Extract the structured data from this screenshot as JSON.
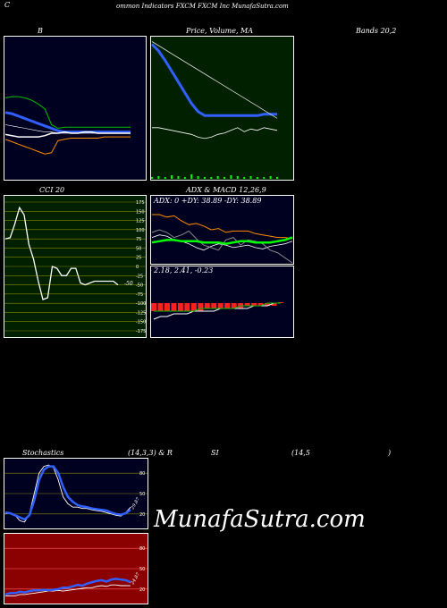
{
  "header": {
    "left": "C",
    "center": "ommon Indicators FXCM FXCM Inc MunafaSutra.com"
  },
  "labels": {
    "bollinger": "B",
    "price": "Price, Volume, MA",
    "bands": "Bands 20,2",
    "cci": "CCI 20",
    "adx": "ADX  & MACD 12,26,9",
    "adx_values": "ADX: 0  +DY: 38.89 -DY: 38.89",
    "macd_values": "2.18,  2.41,  -0.23",
    "stoch_a": "Stochastics",
    "stoch_b": "(14,3,3) & R",
    "stoch_c": "SI",
    "stoch_d": "(14,5",
    "stoch_e": ")",
    "cci_last": "-50",
    "stoch_last": "29.87",
    "rsi_last": "24.87"
  },
  "watermark": "MunafaSutra.com",
  "colors": {
    "panel_bg": "#000020",
    "green_bg": "#002000",
    "rsi_bg": "#8b0000",
    "blue": "#3060ff",
    "orange": "#ff8c00"
  },
  "chart_data": [
    {
      "type": "line",
      "name": "bollinger",
      "x": [
        1,
        2,
        3,
        4,
        5,
        6,
        7,
        8,
        9,
        10,
        11,
        12,
        13,
        14,
        15,
        16,
        17,
        18,
        19,
        20
      ],
      "series": [
        {
          "values": [
            62,
            63,
            63,
            62,
            60,
            57,
            53,
            40,
            37,
            38,
            38,
            38,
            38,
            38,
            38,
            38,
            38,
            38,
            38,
            38
          ]
        },
        {
          "values": [
            50,
            49,
            47,
            45,
            43,
            41,
            39,
            37,
            35,
            34,
            34,
            34,
            34,
            34,
            34,
            34,
            34,
            34,
            34,
            34
          ]
        },
        {
          "values": [
            40,
            39,
            38,
            37,
            36,
            35,
            34,
            34,
            33,
            33,
            33,
            33,
            33,
            33,
            33,
            33,
            33,
            33,
            33,
            33
          ]
        },
        {
          "values": [
            32,
            31,
            30,
            30,
            30,
            30,
            31,
            33,
            33,
            34,
            33,
            33,
            34,
            34,
            33,
            33,
            33,
            33,
            33,
            33
          ]
        },
        {
          "values": [
            28,
            26,
            24,
            22,
            20,
            18,
            16,
            17,
            27,
            28,
            29,
            29,
            29,
            29,
            29,
            30,
            30,
            30,
            30,
            30
          ]
        }
      ]
    },
    {
      "type": "line",
      "name": "price-ma",
      "x": [
        1,
        2,
        3,
        4,
        5,
        6,
        7,
        8,
        9,
        10,
        11,
        12,
        13,
        14,
        15,
        16,
        17,
        18,
        19,
        20
      ],
      "series": [
        {
          "values": [
            100,
            95,
            88,
            80,
            72,
            64,
            56,
            50,
            47,
            47,
            47,
            47,
            47,
            47,
            47,
            47,
            47,
            48,
            48,
            48
          ]
        },
        {
          "values": [
            102,
            99,
            96,
            93,
            90,
            87,
            84,
            81,
            78,
            75,
            72,
            69,
            66,
            63,
            60,
            57,
            54,
            51,
            48,
            45
          ]
        },
        {
          "values": [
            38,
            38,
            37,
            36,
            35,
            34,
            33,
            31,
            30,
            31,
            33,
            34,
            36,
            38,
            35,
            37,
            36,
            38,
            37,
            36
          ]
        }
      ],
      "volume": [
        2,
        3,
        2,
        4,
        3,
        2,
        5,
        3,
        2,
        2,
        3,
        2,
        4,
        3,
        2,
        3,
        2,
        2,
        3,
        2
      ]
    },
    {
      "type": "line",
      "name": "cci",
      "y_ticks": [
        "175",
        "150",
        "125",
        "100",
        "75",
        "50",
        "25",
        "0",
        "-25",
        "-50",
        "-75",
        "-100",
        "-125",
        "-150",
        "-175"
      ],
      "ylim": [
        -175,
        175
      ],
      "x": [
        1,
        2,
        3,
        4,
        5,
        6,
        7,
        8,
        9,
        10,
        11,
        12,
        13,
        14,
        15,
        16,
        17,
        18,
        19,
        20,
        21,
        22,
        23,
        24,
        25
      ],
      "series": [
        {
          "values": [
            75,
            78,
            115,
            160,
            140,
            60,
            20,
            -40,
            -90,
            -85,
            0,
            -5,
            -25,
            -25,
            -5,
            -5,
            -45,
            -50,
            -45,
            -40,
            -40,
            -40,
            -40,
            -40,
            -50
          ]
        }
      ]
    },
    {
      "type": "line",
      "name": "adx",
      "x": [
        1,
        2,
        3,
        4,
        5,
        6,
        7,
        8,
        9,
        10,
        11,
        12,
        13,
        14,
        15,
        16,
        17,
        18,
        19,
        20
      ],
      "series": [
        {
          "values": [
            38,
            38,
            36,
            37,
            33,
            30,
            31,
            29,
            26,
            27,
            24,
            25,
            25,
            25,
            23,
            22,
            21,
            20,
            20,
            19
          ]
        },
        {
          "values": [
            20,
            22,
            21,
            18,
            17,
            15,
            12,
            10,
            13,
            15,
            14,
            12,
            13,
            14,
            12,
            11,
            13,
            14,
            15,
            17
          ]
        },
        {
          "values": [
            24,
            26,
            24,
            20,
            22,
            25,
            19,
            14,
            12,
            10,
            18,
            20,
            14,
            18,
            17,
            15,
            10,
            8,
            4,
            0
          ]
        },
        {
          "values": [
            16,
            17,
            18,
            18,
            17,
            17,
            17,
            16,
            16,
            16,
            15,
            16,
            17,
            17,
            16,
            16,
            16,
            17,
            18,
            20
          ]
        }
      ]
    },
    {
      "type": "bar",
      "name": "macd",
      "x": [
        1,
        2,
        3,
        4,
        5,
        6,
        7,
        8,
        9,
        10,
        11,
        12,
        13,
        14,
        15,
        16,
        17,
        18,
        19,
        20
      ],
      "values": [
        -3,
        -3,
        -3,
        -3,
        -3,
        -3,
        -3,
        -3,
        -2,
        -2,
        -2,
        -2,
        -2,
        -2,
        -1,
        -1,
        -1,
        -1,
        -1,
        0
      ],
      "series": [
        {
          "values": [
            -6,
            -5,
            -5,
            -4,
            -4,
            -4,
            -3,
            -3,
            -3,
            -3,
            -2,
            -2,
            -2,
            -2,
            -2,
            -1,
            -1,
            -1,
            0,
            0
          ]
        },
        {
          "values": [
            -3,
            -3,
            -3,
            -3,
            -3,
            -3,
            -3,
            -2,
            -2,
            -2,
            -2,
            -2,
            -2,
            -1,
            -1,
            -1,
            -1,
            0,
            0,
            0
          ]
        }
      ]
    },
    {
      "type": "line",
      "name": "stochastics",
      "y_ticks": [
        "80",
        "50",
        "20"
      ],
      "ylim": [
        0,
        100
      ],
      "x": [
        1,
        2,
        3,
        4,
        5,
        6,
        7,
        8,
        9,
        10,
        11,
        12,
        13,
        14,
        15,
        16,
        17,
        18,
        19,
        20,
        21,
        22,
        23,
        24,
        25,
        26,
        27
      ],
      "series": [
        {
          "values": [
            20,
            22,
            18,
            10,
            8,
            20,
            50,
            80,
            90,
            92,
            88,
            70,
            45,
            35,
            30,
            30,
            28,
            28,
            26,
            25,
            24,
            22,
            20,
            18,
            17,
            22,
            29.87
          ]
        },
        {
          "values": [
            22,
            21,
            18,
            15,
            12,
            18,
            40,
            70,
            85,
            90,
            90,
            80,
            60,
            45,
            38,
            33,
            31,
            30,
            28,
            27,
            26,
            25,
            22,
            20,
            19,
            21,
            26
          ]
        }
      ]
    },
    {
      "type": "line",
      "name": "rsi",
      "y_ticks": [
        "80",
        "50",
        "20"
      ],
      "ylim": [
        0,
        100
      ],
      "x": [
        1,
        2,
        3,
        4,
        5,
        6,
        7,
        8,
        9,
        10,
        11,
        12,
        13,
        14,
        15,
        16,
        17,
        18,
        19,
        20,
        21,
        22,
        23,
        24,
        25,
        26,
        27
      ],
      "series": [
        {
          "values": [
            10,
            10,
            10,
            12,
            12,
            13,
            14,
            15,
            16,
            17,
            17,
            18,
            17,
            18,
            19,
            20,
            21,
            22,
            22,
            24,
            25,
            24,
            26,
            26,
            25,
            25,
            24.87
          ]
        },
        {
          "values": [
            12,
            14,
            14,
            16,
            15,
            17,
            18,
            18,
            19,
            18,
            19,
            20,
            22,
            22,
            24,
            26,
            25,
            28,
            30,
            32,
            33,
            31,
            34,
            35,
            34,
            33,
            30
          ]
        }
      ]
    }
  ]
}
